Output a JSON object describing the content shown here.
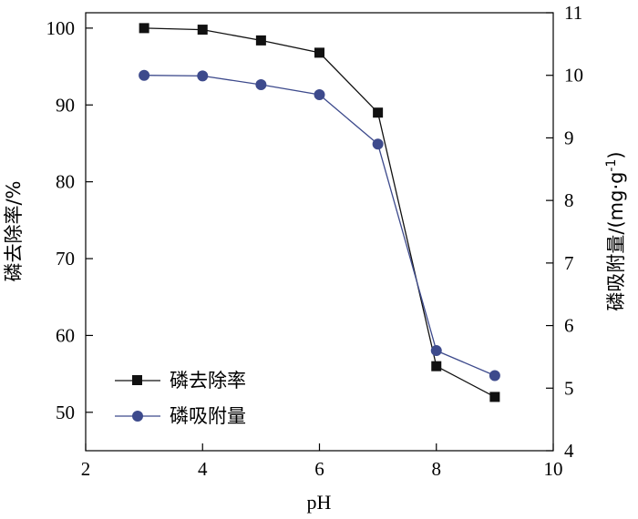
{
  "chart_data": {
    "type": "line",
    "xlabel": "pH",
    "ylabel_left": "磷去除率/%",
    "ylabel_right": "磷吸附量/(mg·g",
    "ylabel_right_sup": "-1",
    "ylabel_right_close": ")",
    "xlim": [
      2,
      10
    ],
    "xticks": [
      "2",
      "4",
      "6",
      "8",
      "10"
    ],
    "ylim_left": [
      45,
      102
    ],
    "yticks_left": [
      "50",
      "60",
      "70",
      "80",
      "90",
      "100"
    ],
    "ylim_right": [
      4,
      11
    ],
    "yticks_right": [
      "4",
      "5",
      "6",
      "7",
      "8",
      "9",
      "10",
      "11"
    ],
    "x": [
      3,
      4,
      5,
      6,
      7,
      8,
      9
    ],
    "series": [
      {
        "name": "磷去除率",
        "axis": "left",
        "marker": "square",
        "color": "#111111",
        "values": [
          100,
          99.8,
          98.4,
          96.8,
          89,
          56,
          52
        ]
      },
      {
        "name": "磷吸附量",
        "axis": "right",
        "marker": "circle",
        "color": "#3d4a8c",
        "values": [
          10,
          9.99,
          9.85,
          9.69,
          8.9,
          5.6,
          5.2
        ]
      }
    ],
    "legend_position": "bottom-left",
    "grid": false
  }
}
